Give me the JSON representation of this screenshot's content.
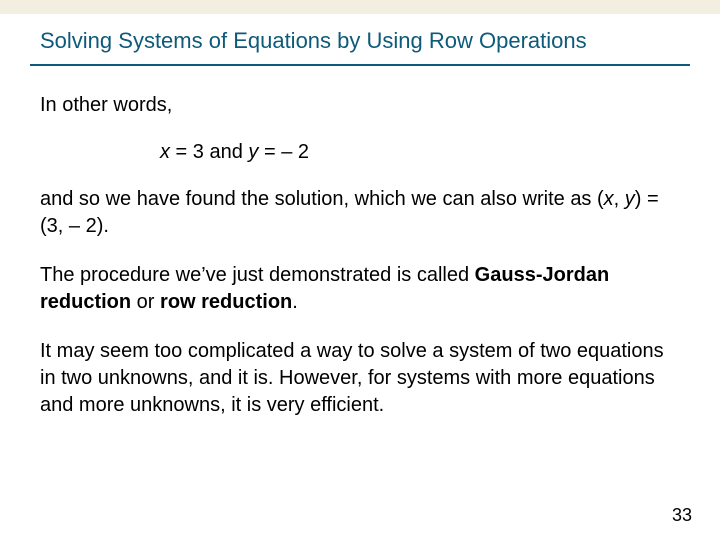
{
  "colors": {
    "topbar": "#f2eee0",
    "title": "#0d5a7a",
    "rule": "#0d5a7a",
    "body_text": "#000000",
    "background": "#ffffff"
  },
  "title": "Solving Systems of Equations by Using Row Operations",
  "intro": "In other words,",
  "eq_x": "x",
  "eq_mid1": " = 3 and ",
  "eq_y": "y",
  "eq_mid2": " = – 2",
  "p2_a": "and so we have found the solution, which we can also write as (",
  "p2_xi": "x",
  "p2_b": ", ",
  "p2_yi": "y",
  "p2_c": ") = (3, – 2).",
  "p3_a": "The procedure we’ve just demonstrated is called ",
  "p3_b1": "Gauss-Jordan reduction",
  "p3_mid": " or ",
  "p3_b2": "row reduction",
  "p3_end": ".",
  "p4": "It may seem too complicated a way to solve a system of two equations in two unknowns, and it is. However, for systems with more equations and more unknowns, it is very efficient.",
  "page_number": "33"
}
